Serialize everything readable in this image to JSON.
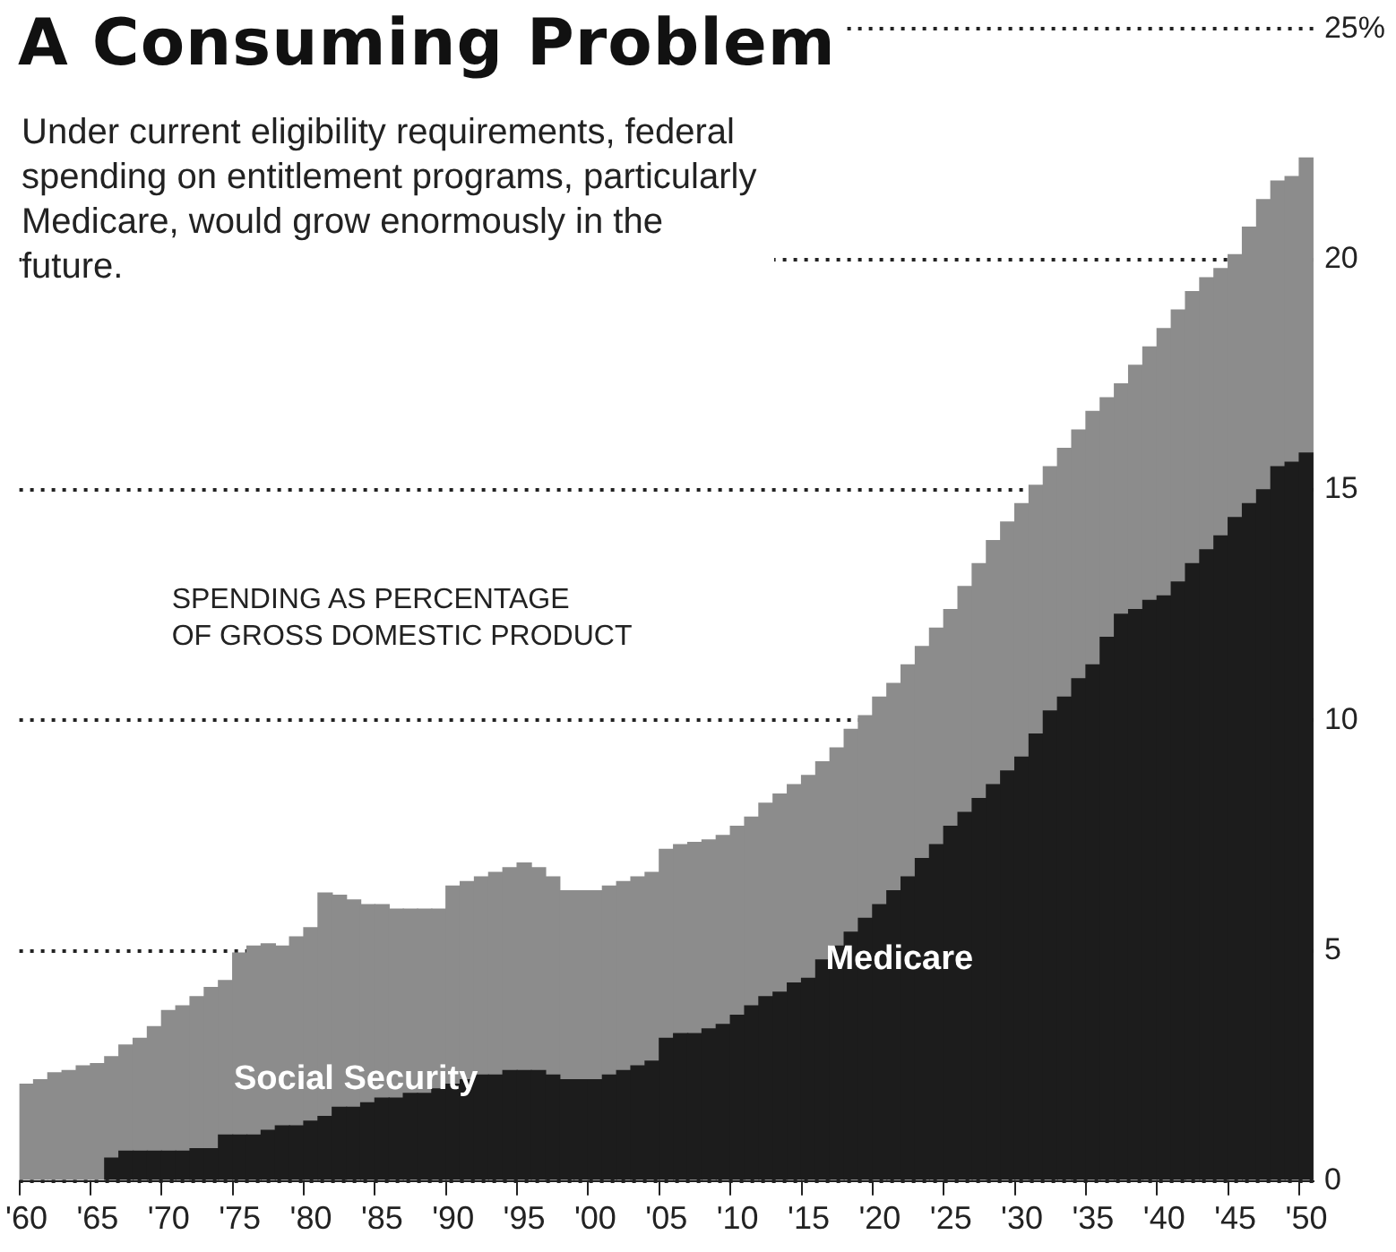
{
  "chart_data": {
    "type": "bar",
    "stacked": true,
    "title": "A Consuming Problem",
    "subtitle": "Under current eligibility requirements, federal spending on entitlement programs, particularly Medicare, would grow enormously in the future.",
    "ylabel": "SPENDING AS PERCENTAGE OF GROSS DOMESTIC PRODUCT",
    "categories": [
      "'60",
      null,
      null,
      null,
      null,
      "'65",
      null,
      null,
      null,
      null,
      "'70",
      null,
      null,
      null,
      null,
      "'75",
      null,
      null,
      null,
      null,
      "'80",
      null,
      null,
      null,
      null,
      "'85",
      null,
      null,
      null,
      null,
      "'90",
      null,
      null,
      null,
      null,
      "'95",
      null,
      null,
      null,
      null,
      "'00",
      null,
      null,
      null,
      null,
      "'05",
      null,
      null,
      null,
      null,
      "'10",
      null,
      null,
      null,
      null,
      "'15",
      null,
      null,
      null,
      null,
      "'20",
      null,
      null,
      null,
      null,
      "'25",
      null,
      null,
      null,
      null,
      "'30",
      null,
      null,
      null,
      null,
      "'35",
      null,
      null,
      null,
      null,
      "'40",
      null,
      null,
      null,
      null,
      "'45",
      null,
      null,
      null,
      null,
      "'50"
    ],
    "series": [
      {
        "name": "Medicare",
        "color": "#1c1c1c",
        "values": [
          0,
          0,
          0,
          0,
          0,
          0,
          0.5,
          0.65,
          0.65,
          0.65,
          0.65,
          0.65,
          0.7,
          0.7,
          1.0,
          1.0,
          1.0,
          1.1,
          1.2,
          1.2,
          1.3,
          1.4,
          1.6,
          1.6,
          1.7,
          1.8,
          1.8,
          1.9,
          1.9,
          2.0,
          2.1,
          2.2,
          2.3,
          2.3,
          2.4,
          2.4,
          2.4,
          2.3,
          2.2,
          2.2,
          2.2,
          2.3,
          2.4,
          2.5,
          2.6,
          3.1,
          3.2,
          3.2,
          3.3,
          3.4,
          3.6,
          3.8,
          4.0,
          4.1,
          4.3,
          4.4,
          4.8,
          5.1,
          5.4,
          5.7,
          6.0,
          6.3,
          6.6,
          7.0,
          7.3,
          7.7,
          8.0,
          8.3,
          8.6,
          8.9,
          9.2,
          9.7,
          10.2,
          10.5,
          10.9,
          11.2,
          11.8,
          12.3,
          12.4,
          12.6,
          12.7,
          13.0,
          13.4,
          13.7,
          14.0,
          14.4,
          14.7,
          15.0,
          15.5,
          15.6,
          15.8
        ]
      },
      {
        "name": "Social Security",
        "color": "#8c8c8c",
        "values": [
          2.1,
          2.2,
          2.35,
          2.4,
          2.5,
          2.55,
          2.2,
          2.3,
          2.45,
          2.7,
          3.05,
          3.15,
          3.3,
          3.5,
          3.35,
          3.95,
          4.1,
          4.05,
          3.9,
          4.1,
          4.2,
          4.85,
          4.6,
          4.5,
          4.3,
          4.2,
          4.1,
          4.0,
          4.0,
          3.9,
          4.3,
          4.3,
          4.3,
          4.4,
          4.4,
          4.5,
          4.4,
          4.3,
          4.1,
          4.1,
          4.1,
          4.1,
          4.1,
          4.1,
          4.1,
          4.1,
          4.1,
          4.15,
          4.1,
          4.1,
          4.1,
          4.1,
          4.2,
          4.3,
          4.3,
          4.4,
          4.3,
          4.3,
          4.4,
          4.4,
          4.5,
          4.5,
          4.6,
          4.6,
          4.7,
          4.7,
          4.9,
          5.1,
          5.3,
          5.4,
          5.5,
          5.4,
          5.3,
          5.4,
          5.4,
          5.5,
          5.2,
          5.0,
          5.3,
          5.5,
          5.8,
          5.9,
          5.9,
          5.9,
          5.8,
          5.7,
          6.0,
          6.3,
          6.2,
          6.2,
          6.4
        ]
      }
    ],
    "ylim": [
      0,
      25
    ],
    "yticks": [
      0,
      5,
      10,
      15,
      20,
      {
        "value": 25,
        "label": "25%"
      }
    ],
    "grid": "y"
  }
}
